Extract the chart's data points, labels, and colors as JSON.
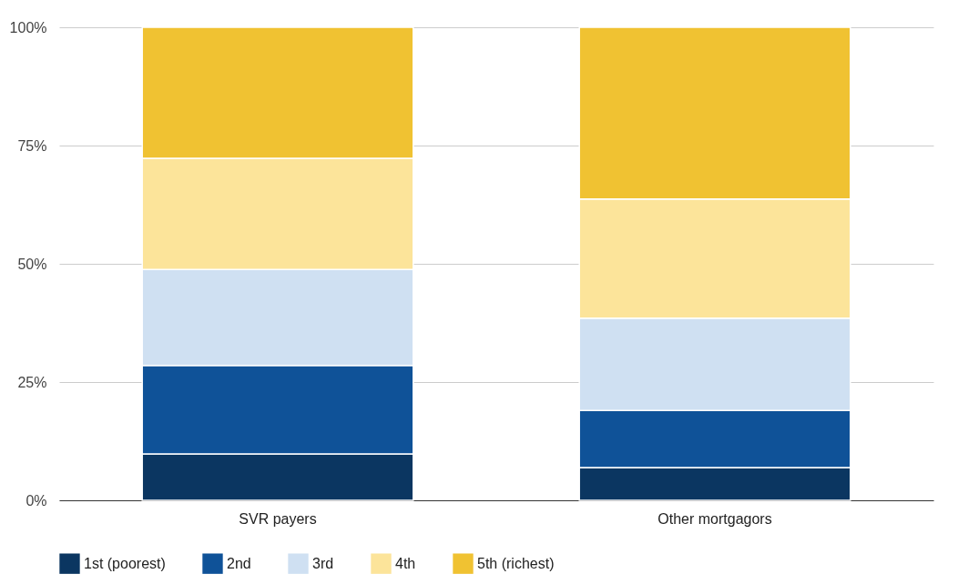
{
  "chart_data": {
    "type": "bar",
    "stacked": true,
    "categories": [
      "SVR payers",
      "Other mortgagors"
    ],
    "series": [
      {
        "name": "1st (poorest)",
        "color": "#0b3661",
        "values": [
          9.8,
          6.9
        ]
      },
      {
        "name": "2nd",
        "color": "#0f5298",
        "values": [
          18.7,
          12.1
        ]
      },
      {
        "name": "3rd",
        "color": "#cfe0f2",
        "values": [
          20.3,
          19.5
        ]
      },
      {
        "name": "4th",
        "color": "#fce49a",
        "values": [
          23.5,
          25.2
        ]
      },
      {
        "name": "5th (richest)",
        "color": "#f0c232",
        "values": [
          27.7,
          36.3
        ]
      }
    ],
    "ylim": [
      0,
      100
    ],
    "yticks": [
      {
        "value": 0,
        "label": "0%"
      },
      {
        "value": 25,
        "label": "25%"
      },
      {
        "value": 50,
        "label": "50%"
      },
      {
        "value": 75,
        "label": "75%"
      },
      {
        "value": 100,
        "label": "100%"
      }
    ],
    "grid": "y",
    "legend": "bottom"
  }
}
